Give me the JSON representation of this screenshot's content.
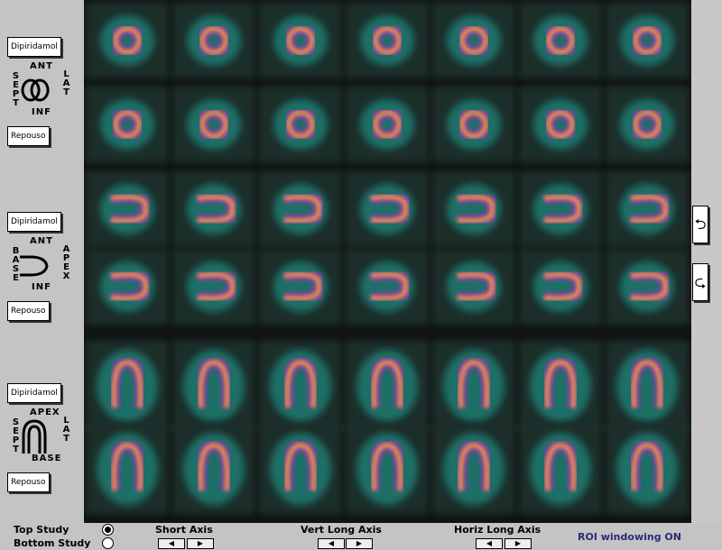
{
  "panels": [
    {
      "stress_button": "Dipiridamol",
      "labels": [
        "ANT",
        "SEPT",
        "LAT",
        "INF"
      ],
      "rest_button": "Repouso"
    },
    {
      "stress_button": "Dipiridamol",
      "labels": [
        "ANT",
        "BASE",
        "APEX",
        "INF"
      ],
      "rest_button": "Repouso"
    },
    {
      "stress_button": "Dipiridamol",
      "labels": [
        "APEX",
        "SEPT",
        "LAT",
        "BASE"
      ],
      "rest_button": "Repouso"
    }
  ],
  "footer": {
    "top_study": "Top Study",
    "bottom_study": "Bottom Study",
    "short_axis": "Short Axis",
    "vert_long_axis": "Vert Long Axis",
    "horiz_long_axis": "Horiz Long Axis",
    "status": "ROI windowing ON"
  }
}
